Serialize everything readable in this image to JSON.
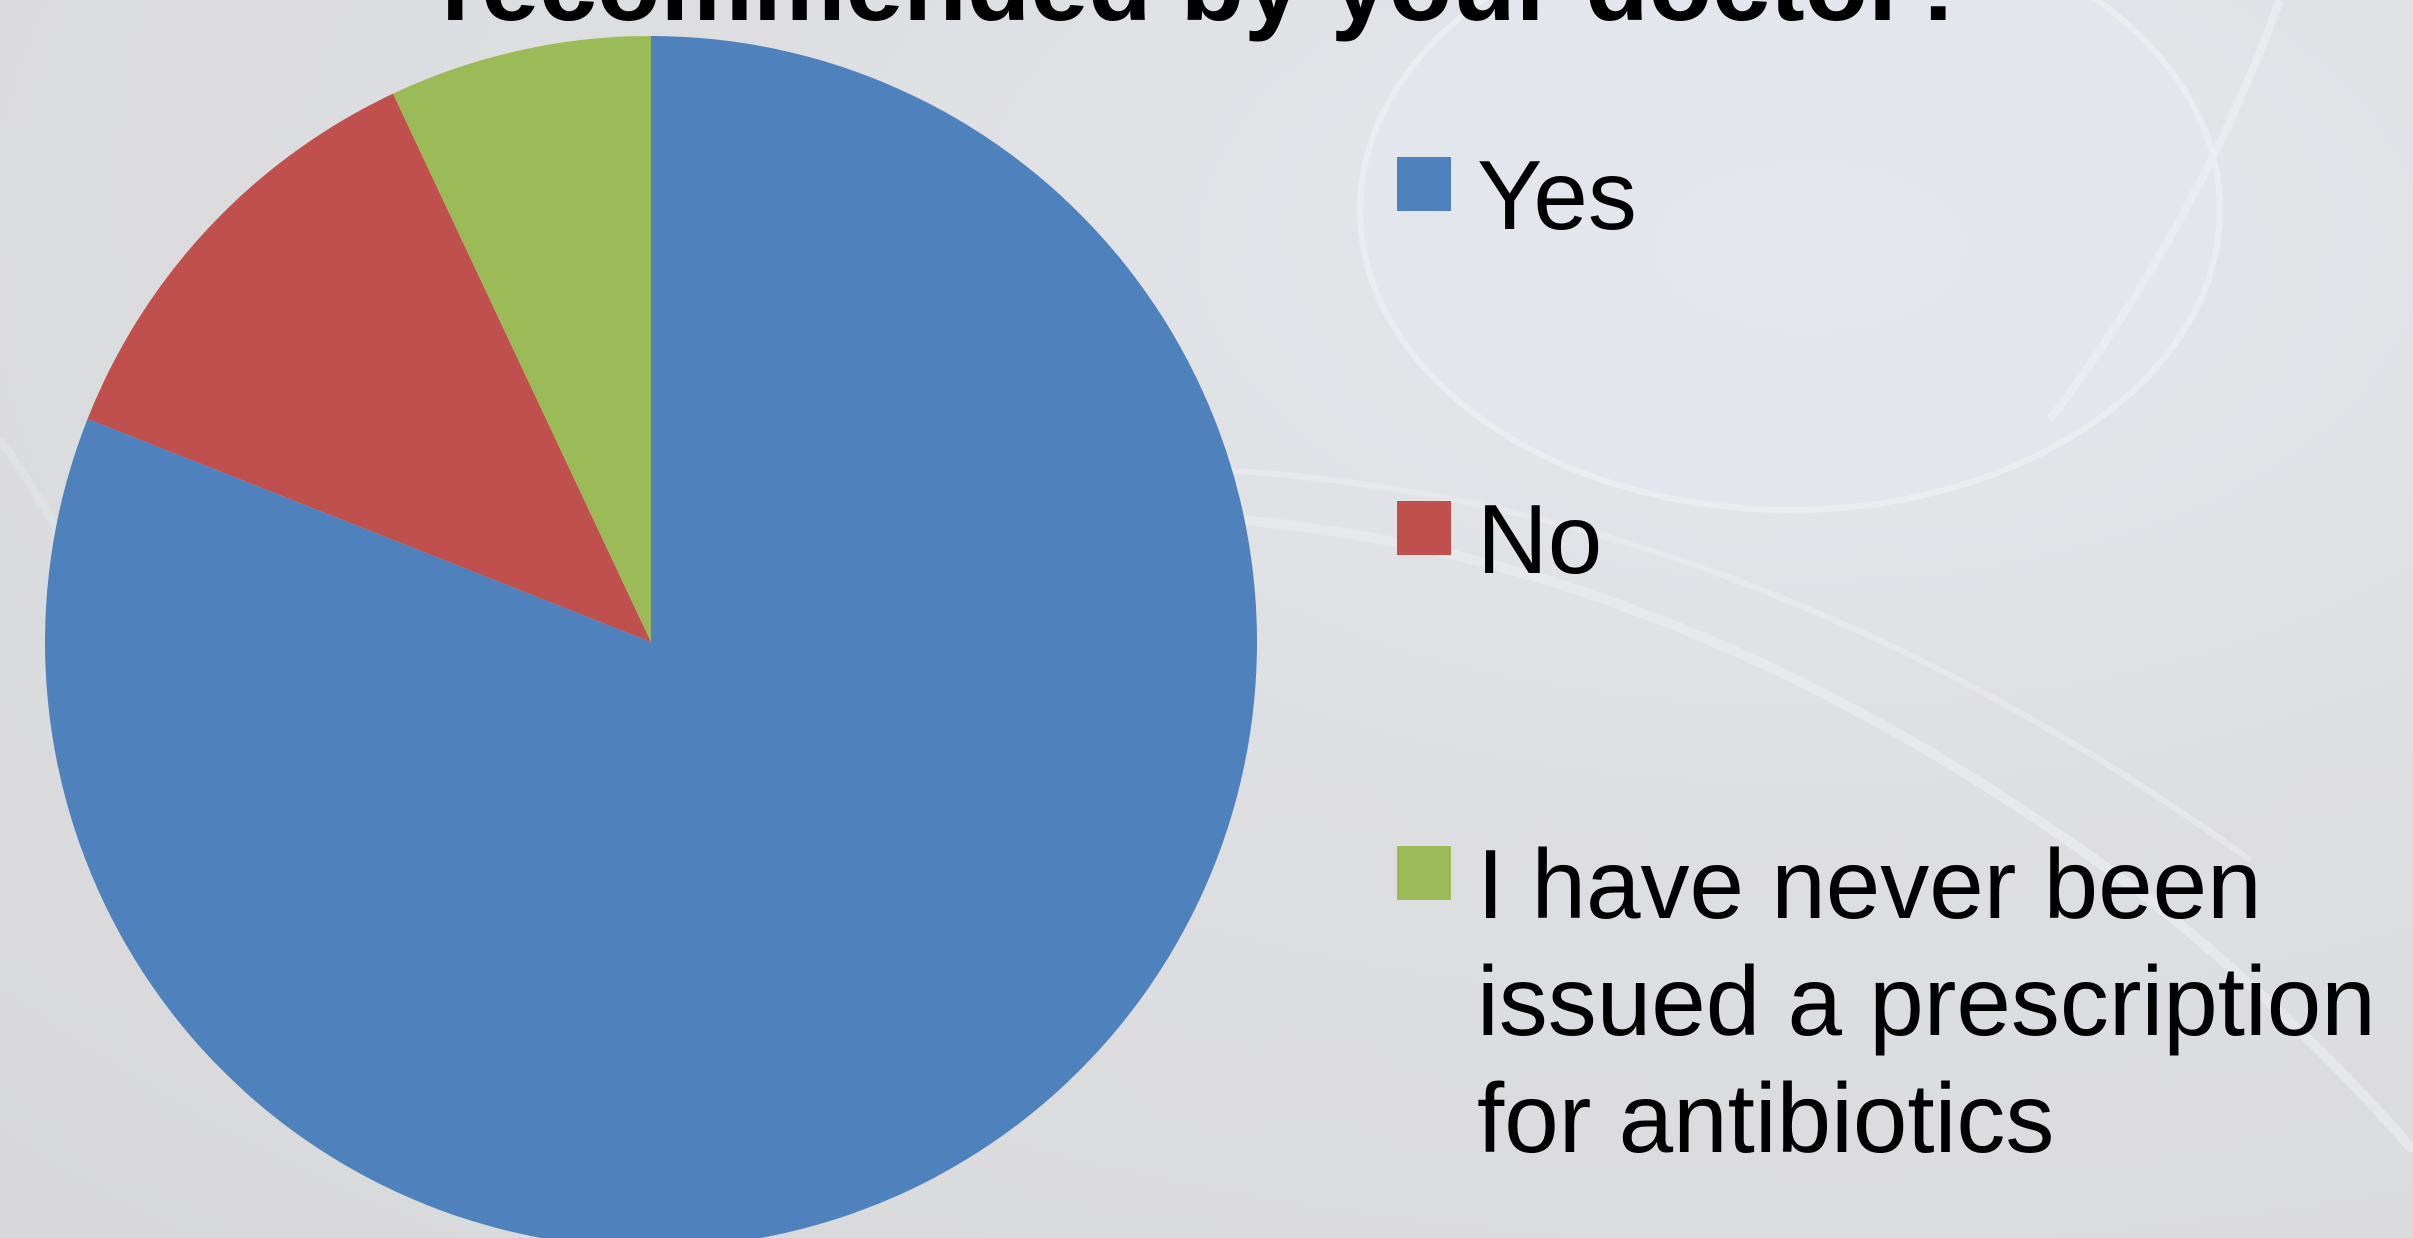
{
  "chart_data": {
    "type": "pie",
    "title": "recommended by your doctor?",
    "categories": [
      "Yes",
      "No",
      "I have never been issued a prescription for antibiotics"
    ],
    "values": [
      81,
      12,
      7
    ],
    "unit": "%",
    "colors": [
      "#4F81BD",
      "#C0504D",
      "#9BBB59"
    ],
    "start_angle_deg": 0,
    "direction": "clockwise",
    "legend_position": "right"
  },
  "legend": {
    "items": [
      {
        "label": "Yes",
        "color": "#4F81BD"
      },
      {
        "label": "No",
        "color": "#C0504D"
      },
      {
        "label": "I have never been issued a prescription for antibiotics",
        "color": "#9BBB59"
      }
    ]
  }
}
